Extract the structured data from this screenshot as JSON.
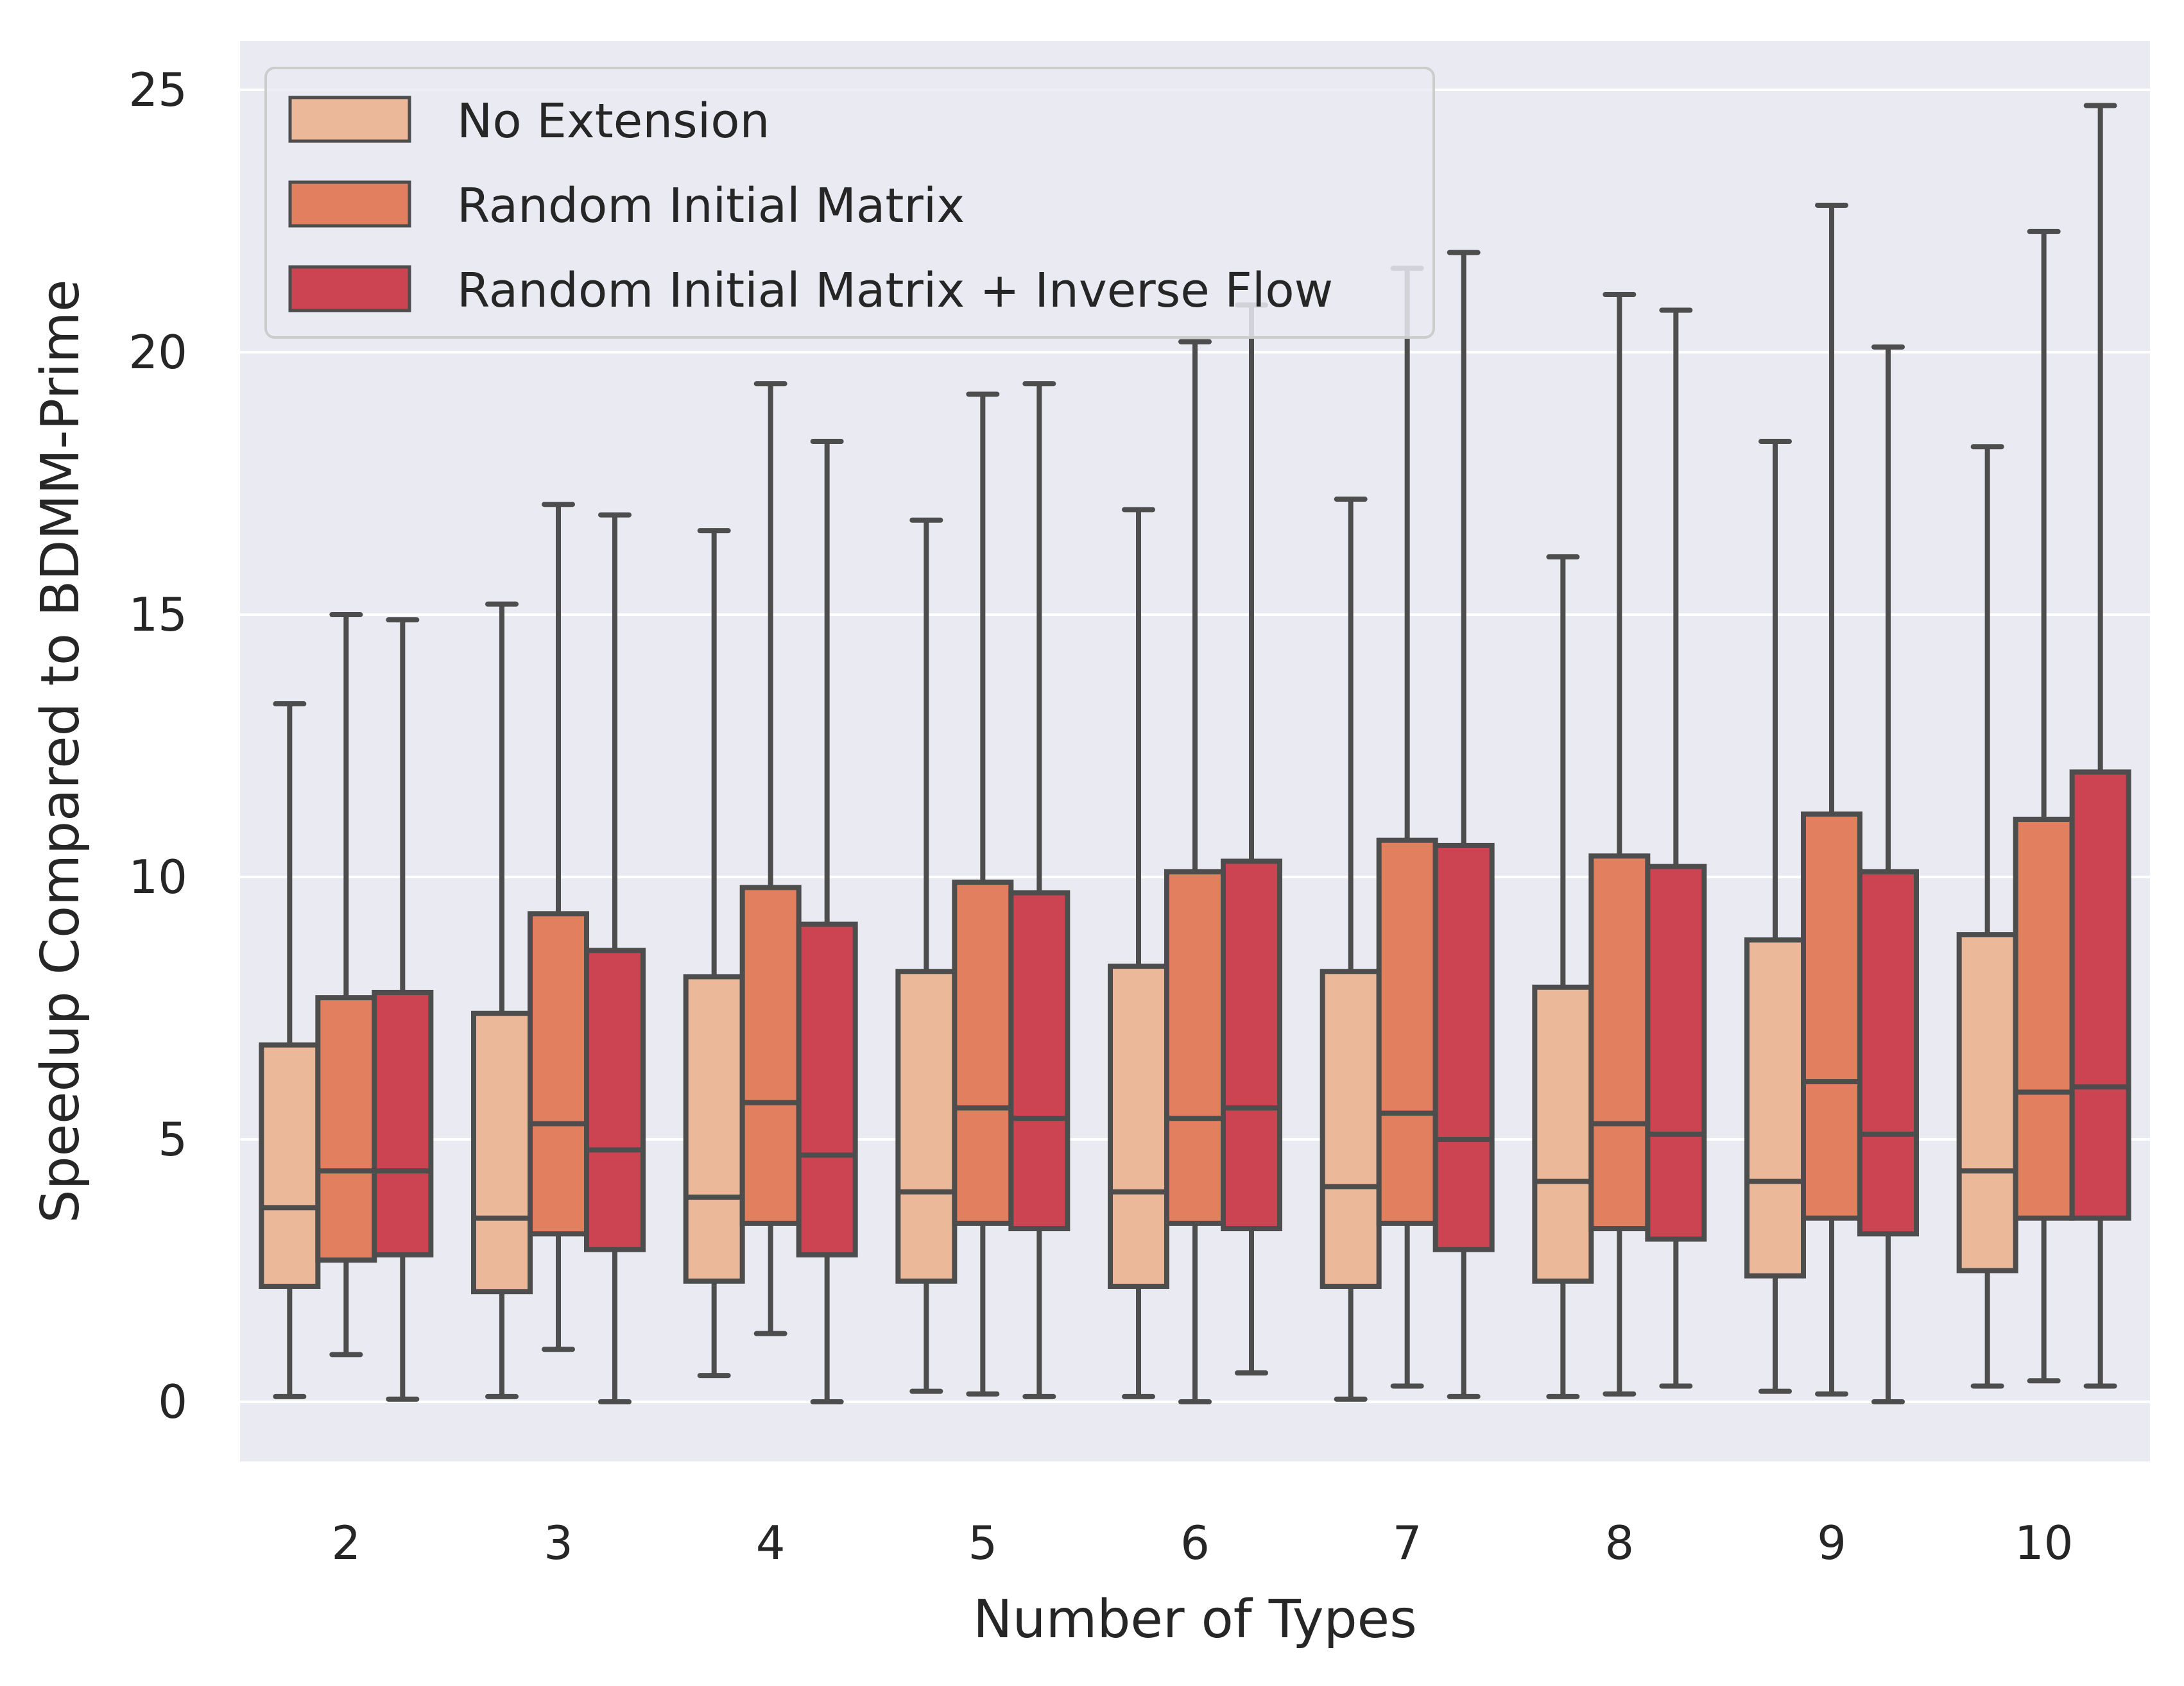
{
  "chart_data": {
    "type": "boxplot",
    "title": "",
    "xlabel": "Number of Types",
    "ylabel": "Speedup Compared to BDMM-Prime",
    "categories": [
      "2",
      "3",
      "4",
      "5",
      "6",
      "7",
      "8",
      "9",
      "10"
    ],
    "yticks": [
      "0",
      "5",
      "10",
      "15",
      "20",
      "25"
    ],
    "ylim": [
      -1.1,
      26
    ],
    "grid": "y",
    "legend_position": "top-left",
    "series": [
      {
        "name": "No Extension",
        "color": "#ebb899",
        "boxes": [
          {
            "whislo": 0.1,
            "q1": 2.2,
            "med": 3.7,
            "q3": 6.8,
            "whishi": 13.3
          },
          {
            "whislo": 0.1,
            "q1": 2.1,
            "med": 3.5,
            "q3": 7.4,
            "whishi": 15.2
          },
          {
            "whislo": 0.5,
            "q1": 2.3,
            "med": 3.9,
            "q3": 8.1,
            "whishi": 16.6
          },
          {
            "whislo": 0.2,
            "q1": 2.3,
            "med": 4.0,
            "q3": 8.2,
            "whishi": 16.8
          },
          {
            "whislo": 0.1,
            "q1": 2.2,
            "med": 4.0,
            "q3": 8.3,
            "whishi": 17.0
          },
          {
            "whislo": 0.05,
            "q1": 2.2,
            "med": 4.1,
            "q3": 8.2,
            "whishi": 17.2
          },
          {
            "whislo": 0.1,
            "q1": 2.3,
            "med": 4.2,
            "q3": 7.9,
            "whishi": 16.1
          },
          {
            "whislo": 0.2,
            "q1": 2.4,
            "med": 4.2,
            "q3": 8.8,
            "whishi": 18.3
          },
          {
            "whislo": 0.3,
            "q1": 2.5,
            "med": 4.4,
            "q3": 8.9,
            "whishi": 18.2
          }
        ]
      },
      {
        "name": "Random Initial Matrix",
        "color": "#e27f5f",
        "boxes": [
          {
            "whislo": 0.9,
            "q1": 2.7,
            "med": 4.4,
            "q3": 7.7,
            "whishi": 15.0
          },
          {
            "whislo": 1.0,
            "q1": 3.2,
            "med": 5.3,
            "q3": 9.3,
            "whishi": 17.1
          },
          {
            "whislo": 1.3,
            "q1": 3.4,
            "med": 5.7,
            "q3": 9.8,
            "whishi": 19.4
          },
          {
            "whislo": 0.15,
            "q1": 3.4,
            "med": 5.6,
            "q3": 9.9,
            "whishi": 19.2
          },
          {
            "whislo": 0.0,
            "q1": 3.4,
            "med": 5.4,
            "q3": 10.1,
            "whishi": 20.2
          },
          {
            "whislo": 0.3,
            "q1": 3.4,
            "med": 5.5,
            "q3": 10.7,
            "whishi": 21.6
          },
          {
            "whislo": 0.15,
            "q1": 3.3,
            "med": 5.3,
            "q3": 10.4,
            "whishi": 21.1
          },
          {
            "whislo": 0.15,
            "q1": 3.5,
            "med": 6.1,
            "q3": 11.2,
            "whishi": 22.8
          },
          {
            "whislo": 0.4,
            "q1": 3.5,
            "med": 5.9,
            "q3": 11.1,
            "whishi": 22.3
          }
        ]
      },
      {
        "name": "Random Initial Matrix + Inverse Flow",
        "color": "#cc4451",
        "boxes": [
          {
            "whislo": 0.05,
            "q1": 2.8,
            "med": 4.4,
            "q3": 7.8,
            "whishi": 14.9
          },
          {
            "whislo": 0.0,
            "q1": 2.9,
            "med": 4.8,
            "q3": 8.6,
            "whishi": 16.9
          },
          {
            "whislo": 0.0,
            "q1": 2.8,
            "med": 4.7,
            "q3": 9.1,
            "whishi": 18.3
          },
          {
            "whislo": 0.1,
            "q1": 3.3,
            "med": 5.4,
            "q3": 9.7,
            "whishi": 19.4
          },
          {
            "whislo": 0.55,
            "q1": 3.3,
            "med": 5.6,
            "q3": 10.3,
            "whishi": 20.9
          },
          {
            "whislo": 0.1,
            "q1": 2.9,
            "med": 5.0,
            "q3": 10.6,
            "whishi": 21.9
          },
          {
            "whislo": 0.3,
            "q1": 3.1,
            "med": 5.1,
            "q3": 10.2,
            "whishi": 20.8
          },
          {
            "whislo": 0.0,
            "q1": 3.2,
            "med": 5.1,
            "q3": 10.1,
            "whishi": 20.1
          },
          {
            "whislo": 0.3,
            "q1": 3.5,
            "med": 6.0,
            "q3": 12.0,
            "whishi": 24.7
          }
        ]
      }
    ]
  }
}
